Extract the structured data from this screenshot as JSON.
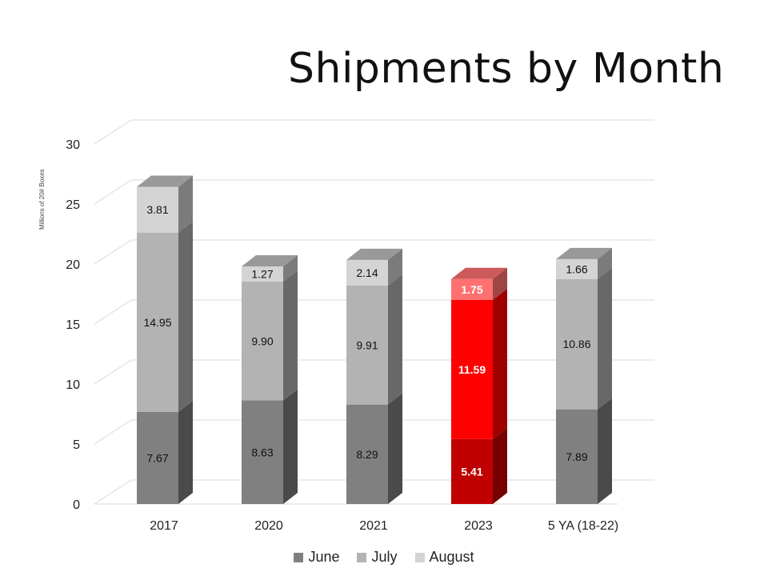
{
  "title": "Shipments by Month",
  "chart_data": {
    "type": "bar",
    "stacked": true,
    "title": "Shipments by Month",
    "ylabel": "Millions of 20# Boxes",
    "xlabel": "",
    "ylim": [
      0,
      30
    ],
    "yticks": [
      0,
      5,
      10,
      15,
      20,
      25,
      30
    ],
    "categories": [
      "2017",
      "2020",
      "2021",
      "2023",
      "5 YA (18-22)"
    ],
    "highlight_category": "2023",
    "series": [
      {
        "name": "June",
        "values": [
          7.67,
          8.63,
          8.29,
          5.41,
          7.89
        ],
        "labels": [
          "7.67",
          "8.63",
          "8.29",
          "5.41",
          "7.89"
        ],
        "color": "#808080",
        "highlight_color": "#c00000"
      },
      {
        "name": "July",
        "values": [
          14.95,
          9.9,
          9.91,
          11.59,
          10.86
        ],
        "labels": [
          "14.95",
          "9.90",
          "9.91",
          "11.59",
          "10.86"
        ],
        "color": "#b3b3b3",
        "highlight_color": "#ff0000"
      },
      {
        "name": "August",
        "values": [
          3.81,
          1.27,
          2.14,
          1.75,
          1.66
        ],
        "labels": [
          "3.81",
          "1.27",
          "2.14",
          "1.75",
          "1.66"
        ],
        "color": "#d4d4d4",
        "highlight_color": "#ff7070"
      }
    ],
    "grid": true,
    "legend_position": "bottom"
  }
}
